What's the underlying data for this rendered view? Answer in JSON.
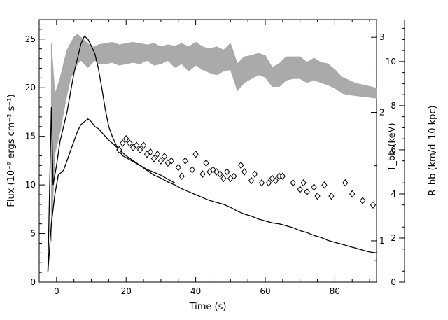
{
  "chart_data": {
    "type": "line",
    "title": "",
    "xlabel": "Time (s)",
    "ylabel_left": "Flux (10⁻⁹ ergs cm⁻² s⁻¹)",
    "ylabel_right_inner": "T_bb (keV)",
    "ylabel_right_outer": "R_bb (km/d_10 kpc)",
    "xlim": [
      -5,
      92
    ],
    "ylim_left": [
      0,
      27
    ],
    "ylim_temperature_log": [
      0.8,
      3.3
    ],
    "ylim_radius": [
      0,
      11.9
    ],
    "x_ticks": [
      "0",
      "20",
      "40",
      "60",
      "80"
    ],
    "y_ticks_left": [
      "0",
      "5",
      "10",
      "15",
      "20",
      "25"
    ],
    "t_ticks": [
      "1",
      "2",
      "3"
    ],
    "r_ticks": [
      "0",
      "2",
      "4",
      "6",
      "8",
      "10"
    ],
    "grid": false,
    "colors": {
      "flux": "#000000",
      "temperature_band": "#aaaaaa",
      "radius_markers": "#000000"
    },
    "series": [
      {
        "role": "flux_upper",
        "x": [
          -2.5,
          -1.5,
          -1,
          0,
          1,
          2,
          3,
          4,
          5,
          6,
          7,
          8,
          9,
          10,
          11,
          12,
          13,
          14,
          15,
          16,
          17,
          18,
          19,
          20,
          22,
          24,
          26,
          28,
          30,
          32,
          34
        ],
        "y": [
          1.0,
          18.0,
          10.0,
          12.0,
          14.5,
          16.0,
          17.5,
          19.5,
          21.5,
          23.0,
          24.5,
          25.3,
          25.0,
          24.3,
          23.5,
          22.0,
          20.0,
          17.8,
          16.0,
          15.0,
          14.2,
          13.5,
          13.0,
          12.8,
          12.4,
          12.0,
          11.6,
          11.3,
          11.0,
          10.6,
          10.2
        ]
      },
      {
        "role": "flux",
        "x": [
          -2.5,
          -1.5,
          -0.5,
          0.5,
          2,
          3,
          4,
          5,
          6,
          7,
          8,
          9,
          10,
          11,
          12,
          13,
          14,
          15,
          16,
          17,
          18,
          19,
          20,
          22,
          24,
          26,
          28,
          30,
          32,
          34,
          36,
          38,
          40,
          42,
          44,
          46,
          48,
          50,
          52,
          54,
          56,
          58,
          60,
          62,
          64,
          66,
          68,
          70,
          72,
          74,
          76,
          78,
          80,
          82,
          84,
          86,
          88,
          90,
          92
        ],
        "y": [
          1.0,
          6.0,
          9.0,
          11.0,
          11.5,
          12.5,
          13.5,
          14.5,
          15.5,
          16.2,
          16.5,
          16.8,
          16.5,
          16.0,
          15.8,
          15.4,
          15.0,
          14.6,
          14.3,
          14.0,
          13.6,
          13.3,
          13.0,
          12.5,
          12.0,
          11.5,
          11.0,
          10.7,
          10.3,
          10.0,
          9.6,
          9.3,
          9.0,
          8.7,
          8.4,
          8.2,
          8.0,
          7.7,
          7.3,
          7.0,
          6.8,
          6.5,
          6.3,
          6.1,
          6.0,
          5.8,
          5.6,
          5.3,
          5.1,
          4.8,
          4.6,
          4.3,
          4.1,
          3.9,
          3.7,
          3.5,
          3.3,
          3.1,
          3.0
        ]
      },
      {
        "role": "temperature_band",
        "x": [
          -1.5,
          -0.5,
          1,
          2,
          3,
          4,
          5,
          6,
          7,
          8,
          9,
          10,
          11,
          12,
          14,
          16,
          18,
          20,
          22,
          24,
          26,
          28,
          30,
          32,
          34,
          36,
          38,
          40,
          42,
          44,
          46,
          48,
          50,
          52,
          54,
          56,
          58,
          60,
          62,
          64,
          66,
          68,
          70,
          72,
          74,
          76,
          78,
          80,
          82,
          84,
          86,
          88,
          90,
          92
        ],
        "y_low": [
          1.0,
          1.6,
          1.8,
          2.0,
          2.2,
          2.4,
          2.5,
          2.6,
          2.65,
          2.6,
          2.55,
          2.6,
          2.65,
          2.6,
          2.6,
          2.62,
          2.58,
          2.6,
          2.62,
          2.6,
          2.65,
          2.58,
          2.6,
          2.65,
          2.55,
          2.6,
          2.5,
          2.58,
          2.52,
          2.48,
          2.45,
          2.5,
          2.52,
          2.25,
          2.35,
          2.4,
          2.45,
          2.42,
          2.3,
          2.3,
          2.38,
          2.4,
          2.4,
          2.35,
          2.38,
          2.35,
          2.32,
          2.28,
          2.22,
          2.2,
          2.19,
          2.18,
          2.17,
          2.16
        ],
        "y_high": [
          2.9,
          2.2,
          2.4,
          2.6,
          2.8,
          2.9,
          3.0,
          3.05,
          3.0,
          2.95,
          2.9,
          2.85,
          2.85,
          2.88,
          2.9,
          2.92,
          2.88,
          2.9,
          2.92,
          2.9,
          2.88,
          2.9,
          2.85,
          2.88,
          2.86,
          2.9,
          2.85,
          2.92,
          2.85,
          2.82,
          2.85,
          2.8,
          2.9,
          2.6,
          2.7,
          2.72,
          2.75,
          2.72,
          2.55,
          2.6,
          2.7,
          2.7,
          2.7,
          2.62,
          2.68,
          2.62,
          2.6,
          2.52,
          2.42,
          2.38,
          2.34,
          2.32,
          2.3,
          2.28
        ]
      },
      {
        "role": "radius_markers",
        "marker": "diamond",
        "x": [
          18,
          19,
          20,
          21,
          22,
          23,
          24,
          25,
          26,
          27,
          28,
          29,
          30,
          31,
          32,
          33,
          35,
          36,
          37,
          39,
          40,
          42,
          43,
          44,
          45,
          46,
          47,
          48,
          49,
          50,
          51,
          53,
          54,
          56,
          57,
          59,
          61,
          62,
          63,
          64,
          65,
          68,
          70,
          71,
          72,
          74,
          75,
          77,
          79,
          83,
          85,
          88,
          91
        ],
        "y": [
          6.0,
          6.3,
          6.5,
          6.3,
          6.1,
          6.2,
          6.0,
          6.2,
          5.8,
          5.9,
          5.6,
          5.8,
          5.5,
          5.7,
          5.4,
          5.5,
          5.2,
          4.8,
          5.5,
          5.1,
          5.8,
          4.9,
          5.4,
          5.0,
          5.1,
          5.0,
          4.9,
          4.7,
          5.0,
          4.7,
          4.8,
          5.3,
          5.0,
          4.6,
          4.9,
          4.5,
          4.5,
          4.7,
          4.6,
          4.8,
          4.8,
          4.5,
          4.2,
          4.5,
          4.1,
          4.3,
          3.9,
          4.4,
          3.9,
          4.5,
          4.0,
          3.7,
          3.5
        ]
      }
    ]
  }
}
